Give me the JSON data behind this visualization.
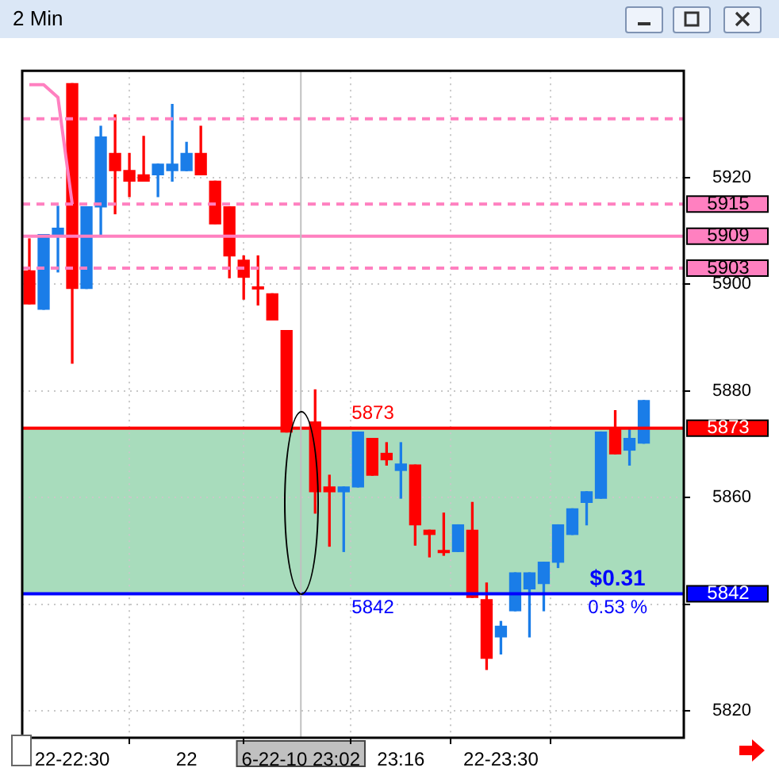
{
  "chart_data": {
    "type": "candlestick",
    "title": "2 Min",
    "categories": [
      null,
      null,
      null,
      "22-22:30",
      null,
      null,
      null,
      null,
      null,
      null,
      null,
      "22",
      null,
      null,
      null,
      null,
      null,
      null,
      null,
      "6-22-10 23:02",
      null,
      null,
      null,
      null,
      null,
      null,
      "23:16",
      null,
      null,
      null,
      null,
      null,
      null,
      "22-23:30",
      null,
      null,
      null,
      null,
      null,
      null,
      null,
      null,
      null,
      null
    ],
    "ohlc": [
      [
        5902.5,
        5908.5,
        5896.3,
        5896.3
      ],
      [
        5895.3,
        5909.3,
        5895.3,
        5909.3
      ],
      [
        5909.3,
        5914.6,
        5902.3,
        5910.5
      ],
      [
        5937.6,
        5937.6,
        5885.2,
        5899.2
      ],
      [
        5899.2,
        5914.5,
        5899.2,
        5914.5
      ],
      [
        5914.5,
        5929.6,
        5909.1,
        5927.6
      ],
      [
        5924.5,
        5931.7,
        5913.2,
        5921.3
      ],
      [
        5921.3,
        5924.5,
        5916.4,
        5919.3
      ],
      [
        5920.5,
        5927.7,
        5919.3,
        5919.3
      ],
      [
        5920.5,
        5922.5,
        5916.4,
        5922.5
      ],
      [
        5921.3,
        5933.7,
        5919.3,
        5922.5
      ],
      [
        5921.3,
        5926.6,
        5921.3,
        5924.5
      ],
      [
        5924.5,
        5929.6,
        5920.5,
        5920.5
      ],
      [
        5919.3,
        5919.3,
        5911.3,
        5911.3
      ],
      [
        5914.5,
        5914.5,
        5901.2,
        5905.3
      ],
      [
        5904.5,
        5905.3,
        5897.2,
        5901.3
      ],
      [
        5899.5,
        5905.3,
        5896.1,
        5899.1
      ],
      [
        5898.2,
        5898.2,
        5893.3,
        5893.3
      ],
      [
        5891.3,
        5891.3,
        5872.3,
        5872.3
      ],
      null,
      [
        5874.2,
        5880.2,
        5857.1,
        5861.1
      ],
      [
        5862,
        5864.2,
        5850.9,
        5861.1
      ],
      [
        5861.1,
        5862,
        5849.9,
        5862
      ],
      [
        5862,
        5872.3,
        5862,
        5872.3
      ],
      [
        5871.1,
        5871.1,
        5864.2,
        5864.2
      ],
      [
        5868.3,
        5870.3,
        5866.1,
        5867.1
      ],
      [
        5865.1,
        5870.3,
        5859.9,
        5866.3
      ],
      [
        5866.1,
        5866.1,
        5851.1,
        5854.9
      ],
      [
        5853.9,
        5853.9,
        5848.9,
        5853.1
      ],
      [
        5850.1,
        5857.1,
        5849.2,
        5849.7
      ],
      [
        5849.9,
        5854.9,
        5849.9,
        5854.9
      ],
      [
        5853.9,
        5859.1,
        5841.3,
        5841.3
      ],
      [
        5840.9,
        5844,
        5827.8,
        5829.9
      ],
      [
        5833.9,
        5836.8,
        5830.7,
        5835.9
      ],
      [
        5838.8,
        5845.9,
        5838.8,
        5845.9
      ],
      [
        5842.9,
        5845.9,
        5833.9,
        5845.9
      ],
      [
        5843.9,
        5847.9,
        5838.8,
        5847.9
      ],
      [
        5847.9,
        5854.9,
        5846.9,
        5854.9
      ],
      [
        5853.1,
        5857.9,
        5853.1,
        5857.9
      ],
      [
        5859.1,
        5861.1,
        5854.9,
        5861.1
      ],
      [
        5859.9,
        5872.3,
        5859.9,
        5872.3
      ],
      [
        5873.1,
        5876.3,
        5868.2,
        5868.2
      ],
      [
        5868.9,
        5873.1,
        5866.1,
        5871.1
      ],
      [
        5870.2,
        5878.2,
        5870.2,
        5878.2
      ]
    ],
    "colors": [
      "#ff0000",
      "#1a7de8",
      "#1a7de8",
      "#ff0000",
      "#1a7de8",
      "#1a7de8",
      "#ff0000",
      "#ff0000",
      "#ff0000",
      "#1a7de8",
      "#1a7de8",
      "#1a7de8",
      "#ff0000",
      "#ff0000",
      "#ff0000",
      "#ff0000",
      "#ff0000",
      "#ff0000",
      "#ff0000",
      null,
      "#ff0000",
      "#ff0000",
      "#1a7de8",
      "#1a7de8",
      "#ff0000",
      "#ff0000",
      "#1a7de8",
      "#ff0000",
      "#ff0000",
      "#ff0000",
      "#1a7de8",
      "#ff0000",
      "#ff0000",
      "#1a7de8",
      "#1a7de8",
      "#1a7de8",
      "#1a7de8",
      "#1a7de8",
      "#1a7de8",
      "#1a7de8",
      "#1a7de8",
      "#ff0000",
      "#1a7de8",
      "#1a7de8"
    ],
    "series": [
      {
        "type": "line",
        "color": "#ff80c0",
        "values": [
          5937.4,
          5937.4,
          5935,
          5915,
          null,
          null,
          null,
          null,
          null,
          null,
          null,
          null,
          null,
          null,
          null,
          null,
          null,
          null,
          null,
          null,
          null,
          null,
          null,
          null,
          null,
          null,
          null,
          null,
          null,
          null,
          null,
          null,
          null,
          null,
          null,
          null,
          null,
          null,
          null,
          null,
          null,
          null,
          null,
          null
        ]
      }
    ],
    "ylim": [
      5815,
      5940
    ],
    "yticks": [
      5820,
      {
        "value": 5840,
        "label": null
      },
      5860,
      5880,
      5900,
      5920
    ],
    "grid": true,
    "marker": "none",
    "ref_lines": [
      {
        "axis": "y",
        "value": 5931,
        "color": "#ff80c0",
        "line_style": "dashed"
      },
      {
        "axis": "y",
        "value": 5915,
        "label": "5915",
        "color": "#ff80c0",
        "line_style": "dashed"
      },
      {
        "axis": "y",
        "value": 5909,
        "label": "5909",
        "color": "#ff80c0",
        "line_style": "solid"
      },
      {
        "axis": "y",
        "value": 5903,
        "label": "5903",
        "color": "#ff80c0",
        "line_style": "dashed"
      },
      {
        "axis": "y",
        "value": 5873,
        "label": "5873",
        "color": "#ff0000",
        "line_style": "solid"
      },
      {
        "axis": "y",
        "value": 5842,
        "label": "5842",
        "color": "#0000ff",
        "line_style": "solid"
      },
      {
        "axis": "x",
        "value": "6-22-10 23:02",
        "color": "#c0c0c0",
        "line_style": "solid"
      }
    ],
    "bands": [
      {
        "axis": "y",
        "from": 5842,
        "to": 5873,
        "color": "#a8dcbc"
      }
    ],
    "annotations": [
      "5873",
      "5842",
      "$0.31",
      "0.53 %"
    ]
  }
}
